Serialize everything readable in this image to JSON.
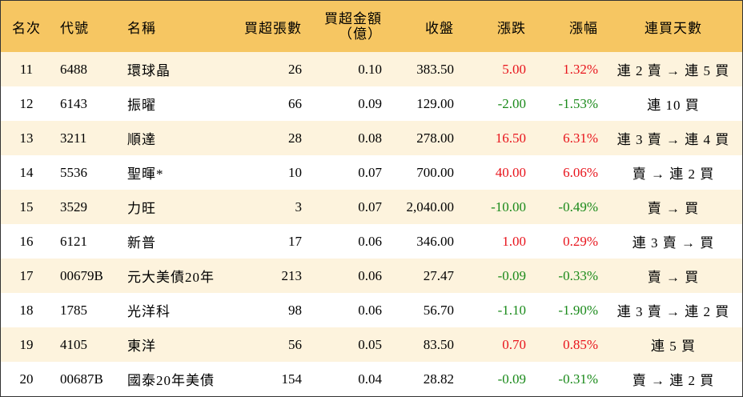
{
  "headers": {
    "rank": "名次",
    "code": "代號",
    "name": "名稱",
    "lots": "買超張數",
    "amount_line1": "買超金額",
    "amount_line2": "（億）",
    "close": "收盤",
    "change": "漲跌",
    "pct": "漲幅",
    "days": "連買天數"
  },
  "rows": [
    {
      "rank": "11",
      "code": "6488",
      "name": "環球晶",
      "lots": "26",
      "amount": "0.10",
      "close": "383.50",
      "change": "5.00",
      "pct": "1.32%",
      "days": "連 2 賣 → 連 5 買",
      "dir": "up"
    },
    {
      "rank": "12",
      "code": "6143",
      "name": "振曜",
      "lots": "66",
      "amount": "0.09",
      "close": "129.00",
      "change": "-2.00",
      "pct": "-1.53%",
      "days": "連 10 買",
      "dir": "down"
    },
    {
      "rank": "13",
      "code": "3211",
      "name": "順達",
      "lots": "28",
      "amount": "0.08",
      "close": "278.00",
      "change": "16.50",
      "pct": "6.31%",
      "days": "連 3 賣 → 連 4 買",
      "dir": "up"
    },
    {
      "rank": "14",
      "code": "5536",
      "name": "聖暉*",
      "lots": "10",
      "amount": "0.07",
      "close": "700.00",
      "change": "40.00",
      "pct": "6.06%",
      "days": "賣 → 連 2 買",
      "dir": "up"
    },
    {
      "rank": "15",
      "code": "3529",
      "name": "力旺",
      "lots": "3",
      "amount": "0.07",
      "close": "2,040.00",
      "change": "-10.00",
      "pct": "-0.49%",
      "days": "賣 → 買",
      "dir": "down"
    },
    {
      "rank": "16",
      "code": "6121",
      "name": "新普",
      "lots": "17",
      "amount": "0.06",
      "close": "346.00",
      "change": "1.00",
      "pct": "0.29%",
      "days": "連 3 賣 → 買",
      "dir": "up"
    },
    {
      "rank": "17",
      "code": "00679B",
      "name": "元大美債20年",
      "lots": "213",
      "amount": "0.06",
      "close": "27.47",
      "change": "-0.09",
      "pct": "-0.33%",
      "days": "賣 → 買",
      "dir": "down"
    },
    {
      "rank": "18",
      "code": "1785",
      "name": "光洋科",
      "lots": "98",
      "amount": "0.06",
      "close": "56.70",
      "change": "-1.10",
      "pct": "-1.90%",
      "days": "連 3 賣 → 連 2 買",
      "dir": "down"
    },
    {
      "rank": "19",
      "code": "4105",
      "name": "東洋",
      "lots": "56",
      "amount": "0.05",
      "close": "83.50",
      "change": "0.70",
      "pct": "0.85%",
      "days": "連 5 買",
      "dir": "up"
    },
    {
      "rank": "20",
      "code": "00687B",
      "name": "國泰20年美債",
      "lots": "154",
      "amount": "0.04",
      "close": "28.82",
      "change": "-0.09",
      "pct": "-0.31%",
      "days": "賣 → 連 2 買",
      "dir": "down"
    }
  ],
  "colors": {
    "header_bg": "#f6c662",
    "odd_row_bg": "#fdf3dd",
    "up": "#e8141c",
    "down": "#1a8a1a"
  }
}
